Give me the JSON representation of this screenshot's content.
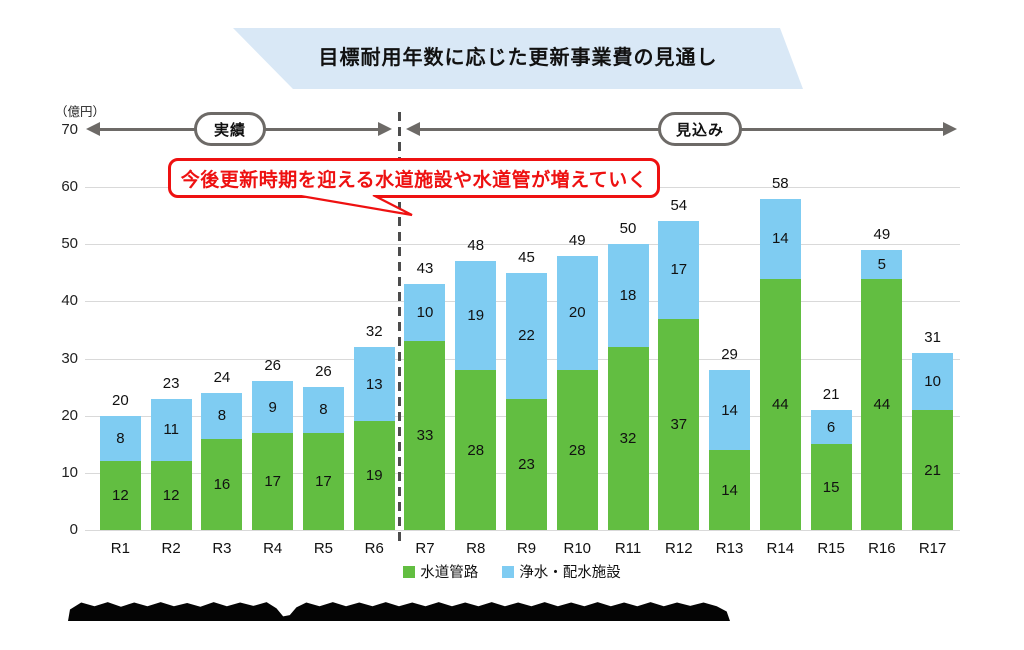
{
  "title": "目標耐用年数に応じた更新事業費の見通し",
  "axis": {
    "unit": "（億円）"
  },
  "timeline": {
    "actual_label": "実績",
    "forecast_label": "見込み"
  },
  "callout": {
    "text": "今後更新時期を迎える水道施設や水道管が増えていく"
  },
  "colors": {
    "banner_bg": "#d9e8f6",
    "arrow": "#6d6a67",
    "gridline": "#d9d9d9",
    "dashed_line": "#4c4c4c",
    "callout_red": "#ee1111",
    "pipe_green": "#62be41",
    "facility_blue": "#7fccf2"
  },
  "chart_data": {
    "type": "bar",
    "subtype": "stacked",
    "title": "目標耐用年数に応じた更新事業費の見通し",
    "y_unit": "（億円）",
    "ylim": [
      0,
      70
    ],
    "yticks": [
      0,
      10,
      20,
      30,
      40,
      50,
      60,
      70
    ],
    "grid": true,
    "legend_position": "bottom",
    "categories": [
      "R1",
      "R2",
      "R3",
      "R4",
      "R5",
      "R6",
      "R7",
      "R8",
      "R9",
      "R10",
      "R11",
      "R12",
      "R13",
      "R14",
      "R15",
      "R16",
      "R17"
    ],
    "series": [
      {
        "name": "水道管路",
        "color": "#62be41",
        "values": [
          12,
          12,
          16,
          17,
          17,
          19,
          33,
          28,
          23,
          28,
          32,
          37,
          14,
          44,
          15,
          44,
          21
        ]
      },
      {
        "name": "浄水・配水施設",
        "color": "#7fccf2",
        "values": [
          8,
          11,
          8,
          9,
          8,
          13,
          10,
          19,
          22,
          20,
          18,
          17,
          14,
          14,
          6,
          5,
          10
        ]
      }
    ],
    "totals": [
      20,
      23,
      24,
      26,
      26,
      32,
      43,
      48,
      45,
      49,
      50,
      54,
      29,
      58,
      21,
      49,
      31
    ],
    "divider_after_category": "R6",
    "actual_categories": [
      "R1",
      "R2",
      "R3",
      "R4",
      "R5",
      "R6"
    ],
    "forecast_categories": [
      "R7",
      "R8",
      "R9",
      "R10",
      "R11",
      "R12",
      "R13",
      "R14",
      "R15",
      "R16",
      "R17"
    ]
  }
}
